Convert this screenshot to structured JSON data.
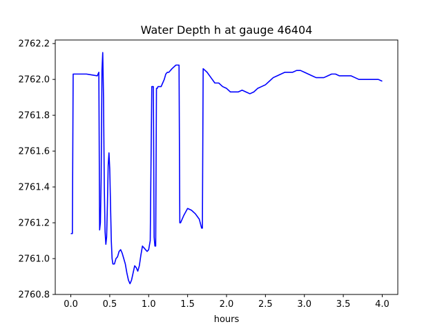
{
  "chart_data": {
    "type": "line",
    "title": "Water Depth h at gauge 46404",
    "xlabel": "hours",
    "ylabel": "",
    "xlim": [
      -0.2,
      4.2
    ],
    "ylim": [
      2760.8,
      2762.22
    ],
    "xticks": [
      0.0,
      0.5,
      1.0,
      1.5,
      2.0,
      2.5,
      3.0,
      3.5,
      4.0
    ],
    "xtick_labels": [
      "0.0",
      "0.5",
      "1.0",
      "1.5",
      "2.0",
      "2.5",
      "3.0",
      "3.5",
      "4.0"
    ],
    "yticks": [
      2760.8,
      2761.0,
      2761.2,
      2761.4,
      2761.6,
      2761.8,
      2762.0,
      2762.2
    ],
    "ytick_labels": [
      "2760.8",
      "2761.0",
      "2761.2",
      "2761.4",
      "2761.6",
      "2761.8",
      "2762.0",
      "2762.2"
    ],
    "grid": false,
    "series": [
      {
        "color": "#0000ff",
        "x": [
          0.0,
          0.02,
          0.03,
          0.05,
          0.2,
          0.34,
          0.36,
          0.37,
          0.38,
          0.39,
          0.4,
          0.41,
          0.42,
          0.43,
          0.44,
          0.45,
          0.46,
          0.47,
          0.48,
          0.49,
          0.5,
          0.51,
          0.52,
          0.53,
          0.54,
          0.56,
          0.58,
          0.6,
          0.62,
          0.64,
          0.66,
          0.68,
          0.7,
          0.72,
          0.74,
          0.76,
          0.78,
          0.8,
          0.82,
          0.84,
          0.86,
          0.88,
          0.9,
          0.92,
          0.94,
          0.96,
          0.98,
          1.0,
          1.02,
          1.04,
          1.06,
          1.07,
          1.08,
          1.09,
          1.1,
          1.11,
          1.12,
          1.14,
          1.16,
          1.18,
          1.2,
          1.22,
          1.24,
          1.26,
          1.3,
          1.35,
          1.39,
          1.4,
          1.41,
          1.42,
          1.45,
          1.5,
          1.55,
          1.6,
          1.65,
          1.68,
          1.69,
          1.7,
          1.75,
          1.8,
          1.85,
          1.9,
          1.95,
          2.0,
          2.05,
          2.1,
          2.15,
          2.2,
          2.25,
          2.3,
          2.35,
          2.4,
          2.45,
          2.5,
          2.55,
          2.6,
          2.65,
          2.7,
          2.75,
          2.8,
          2.85,
          2.9,
          2.95,
          3.0,
          3.05,
          3.1,
          3.15,
          3.2,
          3.25,
          3.3,
          3.35,
          3.4,
          3.45,
          3.5,
          3.55,
          3.6,
          3.65,
          3.7,
          3.75,
          3.8,
          3.85,
          3.9,
          3.95,
          4.0
        ],
        "y": [
          2761.14,
          2761.14,
          2762.03,
          2762.03,
          2762.03,
          2762.02,
          2762.04,
          2761.16,
          2761.2,
          2761.45,
          2762.05,
          2762.15,
          2761.9,
          2761.4,
          2761.15,
          2761.08,
          2761.12,
          2761.3,
          2761.52,
          2761.59,
          2761.5,
          2761.3,
          2761.1,
          2761.0,
          2760.97,
          2760.97,
          2761.0,
          2761.01,
          2761.04,
          2761.05,
          2761.03,
          2761.0,
          2760.97,
          2760.92,
          2760.88,
          2760.86,
          2760.88,
          2760.92,
          2760.96,
          2760.95,
          2760.93,
          2760.96,
          2761.02,
          2761.07,
          2761.06,
          2761.05,
          2761.04,
          2761.05,
          2761.1,
          2761.96,
          2761.96,
          2761.12,
          2761.07,
          2761.07,
          2761.95,
          2761.95,
          2761.96,
          2761.96,
          2761.96,
          2761.98,
          2762.0,
          2762.03,
          2762.04,
          2762.04,
          2762.06,
          2762.08,
          2762.08,
          2761.2,
          2761.2,
          2761.21,
          2761.24,
          2761.28,
          2761.27,
          2761.25,
          2761.22,
          2761.17,
          2761.17,
          2762.06,
          2762.04,
          2762.01,
          2761.98,
          2761.98,
          2761.96,
          2761.95,
          2761.93,
          2761.93,
          2761.93,
          2761.94,
          2761.93,
          2761.92,
          2761.93,
          2761.95,
          2761.96,
          2761.97,
          2761.99,
          2762.01,
          2762.02,
          2762.03,
          2762.04,
          2762.04,
          2762.04,
          2762.05,
          2762.05,
          2762.04,
          2762.03,
          2762.02,
          2762.01,
          2762.01,
          2762.01,
          2762.02,
          2762.03,
          2762.03,
          2762.02,
          2762.02,
          2762.02,
          2762.02,
          2762.01,
          2762.0,
          2762.0,
          2762.0,
          2762.0,
          2762.0,
          2762.0,
          2761.99
        ]
      }
    ]
  }
}
